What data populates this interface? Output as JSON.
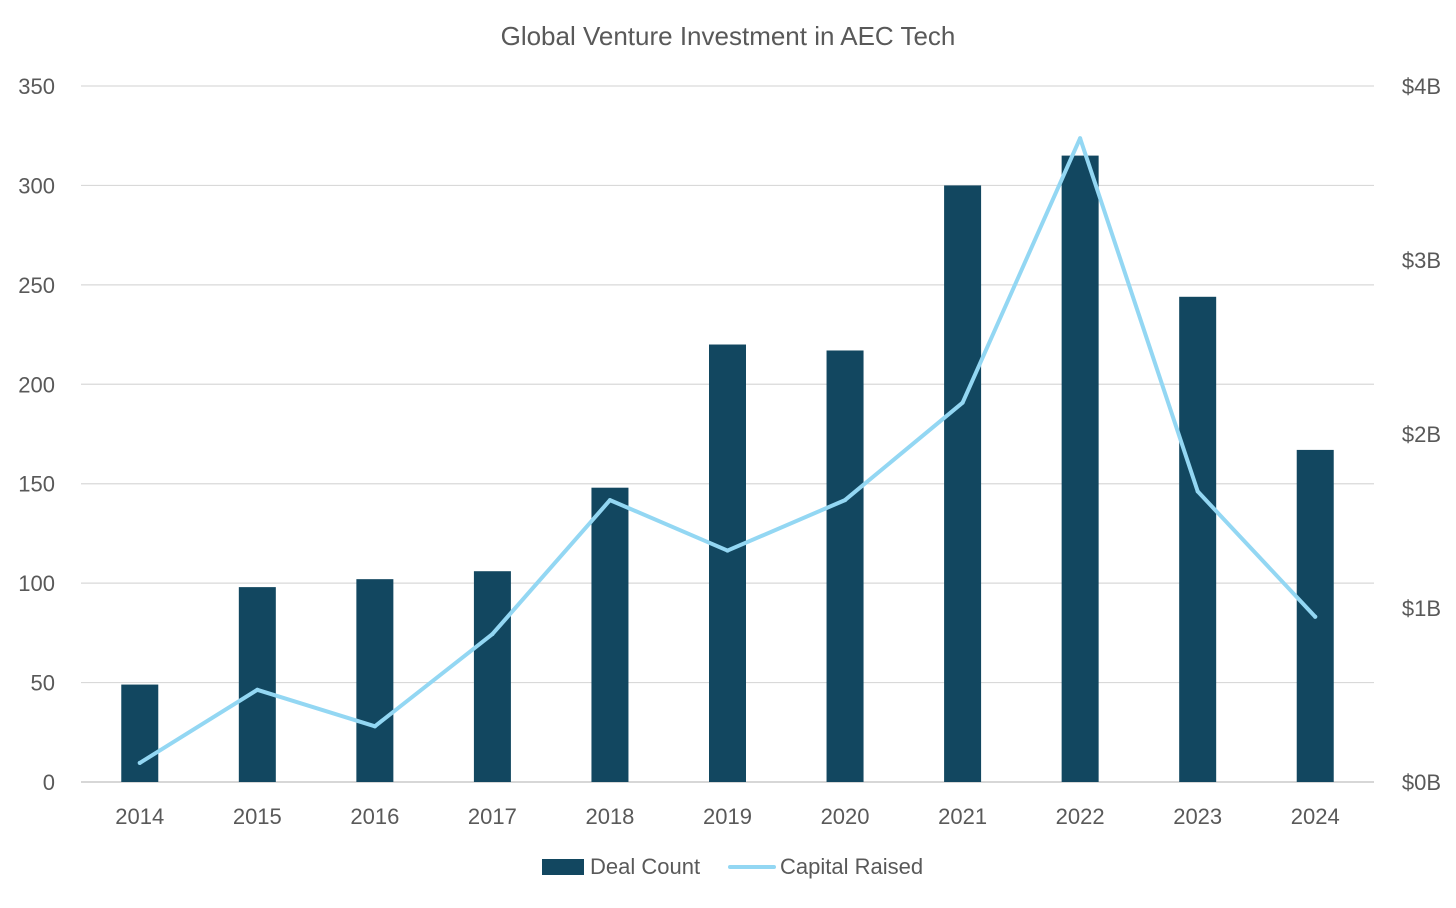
{
  "chart_data": {
    "type": "bar",
    "title": "Global Venture Investment in AEC Tech",
    "categories": [
      "2014",
      "2015",
      "2016",
      "2017",
      "2018",
      "2019",
      "2020",
      "2021",
      "2022",
      "2023",
      "2024"
    ],
    "series": [
      {
        "name": "Deal Count",
        "type": "bar",
        "axis": "left",
        "color": "#124760",
        "values": [
          49,
          98,
          102,
          106,
          148,
          220,
          217,
          300,
          315,
          244,
          167
        ]
      },
      {
        "name": "Capital Raised",
        "type": "line",
        "axis": "right",
        "unit": "$B",
        "color": "#93D7F3",
        "values": [
          0.11,
          0.53,
          0.32,
          0.85,
          1.62,
          1.33,
          1.62,
          2.18,
          3.7,
          1.67,
          0.95
        ]
      }
    ],
    "y_left": {
      "label": "",
      "ylim": [
        0,
        350
      ],
      "ticks": [
        0,
        50,
        100,
        150,
        200,
        250,
        300,
        350
      ],
      "tick_labels": [
        "0",
        "50",
        "100",
        "150",
        "200",
        "250",
        "300",
        "350"
      ]
    },
    "y_right": {
      "label": "",
      "ylim": [
        0,
        4
      ],
      "ticks": [
        0,
        1,
        2,
        3,
        4
      ],
      "tick_labels": [
        "$0B",
        "$1B",
        "$2B",
        "$3B",
        "$4B"
      ]
    },
    "xlabel": "",
    "grid": true,
    "legend_position": "bottom-center",
    "colors": {
      "grid": "#D9D9D9",
      "axis_text": "#595959",
      "title_text": "#595959"
    }
  }
}
